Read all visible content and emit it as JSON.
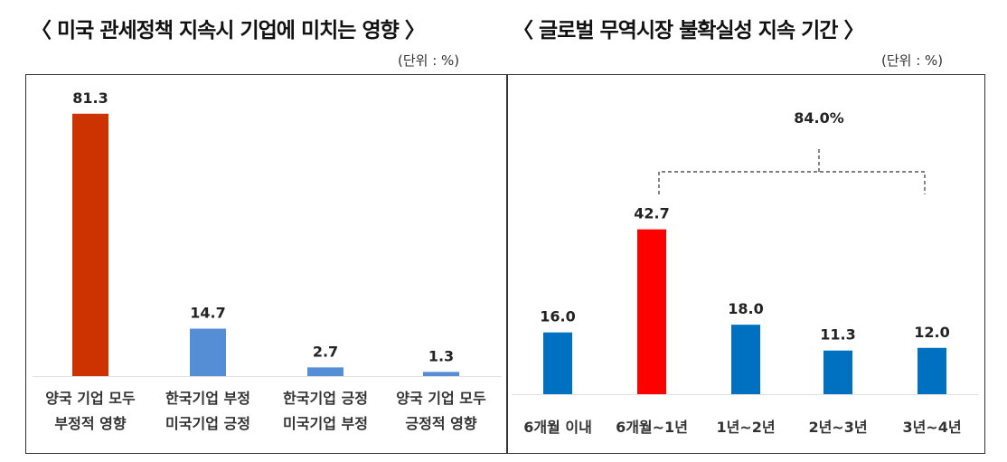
{
  "chart_data": [
    {
      "type": "bar",
      "title": "〈 미국 관세정책 지속시 기업에 미치는 영향 〉",
      "unit": "(단위 : %)",
      "categories": [
        [
          "양국 기업 모두",
          "부정적 영향"
        ],
        [
          "한국기업 부정",
          "미국기업 긍정"
        ],
        [
          "한국기업 긍정",
          "미국기업 부정"
        ],
        [
          "양국 기업 모두",
          "긍정적 영향"
        ]
      ],
      "values": [
        81.3,
        14.7,
        2.7,
        1.3
      ],
      "labels": [
        "81.3",
        "14.7",
        "2.7",
        "1.3"
      ],
      "colors": [
        "#cc3300",
        "#558ed5",
        "#558ed5",
        "#558ed5"
      ],
      "ylim": [
        0,
        90
      ]
    },
    {
      "type": "bar",
      "title": "〈 글로벌 무역시장 불확실성 지속 기간 〉",
      "unit": "(단위 : %)",
      "categories": [
        "6개월 이내",
        "6개월~1년",
        "1년~2년",
        "2년~3년",
        "3년~4년"
      ],
      "values": [
        16.0,
        42.7,
        18.0,
        11.3,
        12.0
      ],
      "labels": [
        "16.0",
        "42.7",
        "18.0",
        "11.3",
        "12.0"
      ],
      "colors": [
        "#0070c0",
        "#ff0000",
        "#0070c0",
        "#0070c0",
        "#0070c0"
      ],
      "ylim": [
        0,
        50
      ],
      "annotation": {
        "text": "84.0%",
        "range": [
          "6개월~1년",
          "3년~4년"
        ]
      }
    }
  ]
}
